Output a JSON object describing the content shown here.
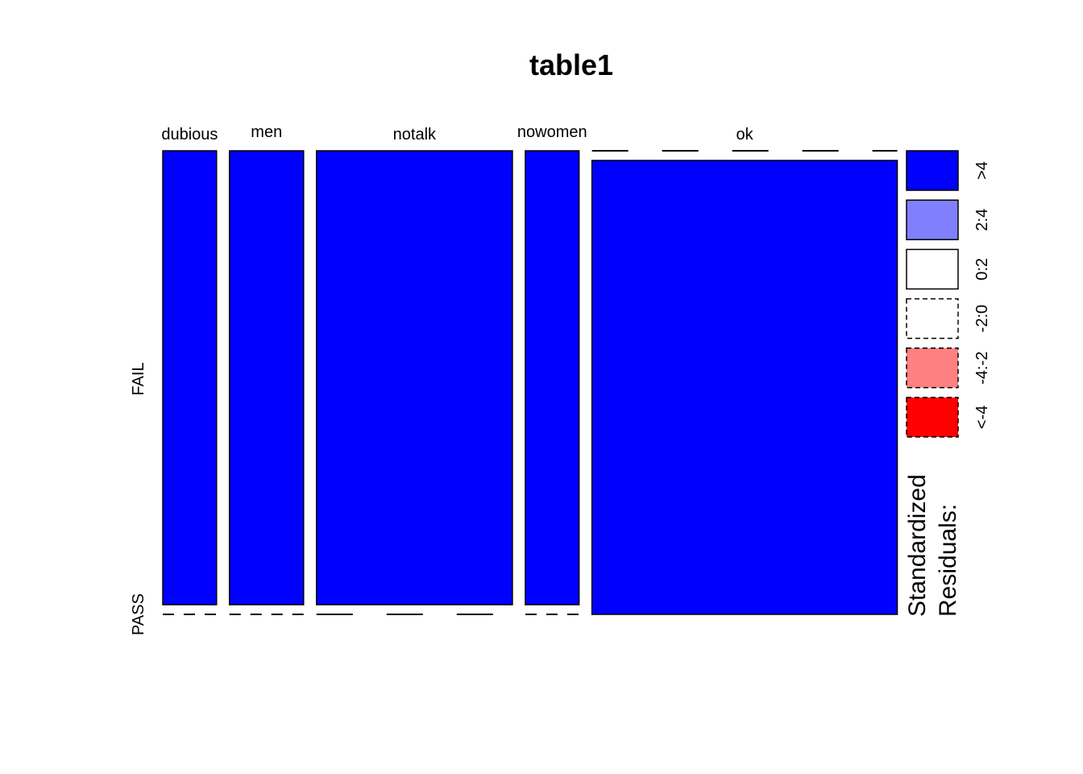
{
  "chart_data": {
    "type": "mosaic",
    "title": "table1",
    "columns": [
      "dubious",
      "men",
      "notalk",
      "nowomen",
      "ok"
    ],
    "rows": [
      "FAIL",
      "PASS"
    ],
    "column_shares": [
      0.087,
      0.12,
      0.317,
      0.087,
      0.494
    ],
    "cells": [
      {
        "column": "dubious",
        "row": "FAIL",
        "share": 1.0,
        "residual_class": ">4"
      },
      {
        "column": "dubious",
        "row": "PASS",
        "share": 0.0,
        "residual_class": "-2:0"
      },
      {
        "column": "men",
        "row": "FAIL",
        "share": 1.0,
        "residual_class": ">4"
      },
      {
        "column": "men",
        "row": "PASS",
        "share": 0.0,
        "residual_class": "-2:0"
      },
      {
        "column": "notalk",
        "row": "FAIL",
        "share": 1.0,
        "residual_class": ">4"
      },
      {
        "column": "notalk",
        "row": "PASS",
        "share": 0.0,
        "residual_class": "0:2"
      },
      {
        "column": "nowomen",
        "row": "FAIL",
        "share": 1.0,
        "residual_class": ">4"
      },
      {
        "column": "nowomen",
        "row": "PASS",
        "share": 0.0,
        "residual_class": "-2:0"
      },
      {
        "column": "ok",
        "row": "FAIL",
        "share": 0.0,
        "residual_class": "0:2"
      },
      {
        "column": "ok",
        "row": "PASS",
        "share": 1.0,
        "residual_class": ">4"
      }
    ],
    "legend": {
      "title_lines": [
        "Standardized",
        "Residuals:"
      ],
      "entries": [
        {
          "label": ">4",
          "color": "#0000ff",
          "dashed": false
        },
        {
          "label": "2:4",
          "color": "#8080ff",
          "dashed": false
        },
        {
          "label": "0:2",
          "color": "#ffffff",
          "dashed": false
        },
        {
          "label": "-2:0",
          "color": "#ffffff",
          "dashed": true
        },
        {
          "label": "-4:-2",
          "color": "#ff8080",
          "dashed": true
        },
        {
          "label": "<-4",
          "color": "#ff0000",
          "dashed": true
        }
      ],
      "placement": "right"
    }
  }
}
